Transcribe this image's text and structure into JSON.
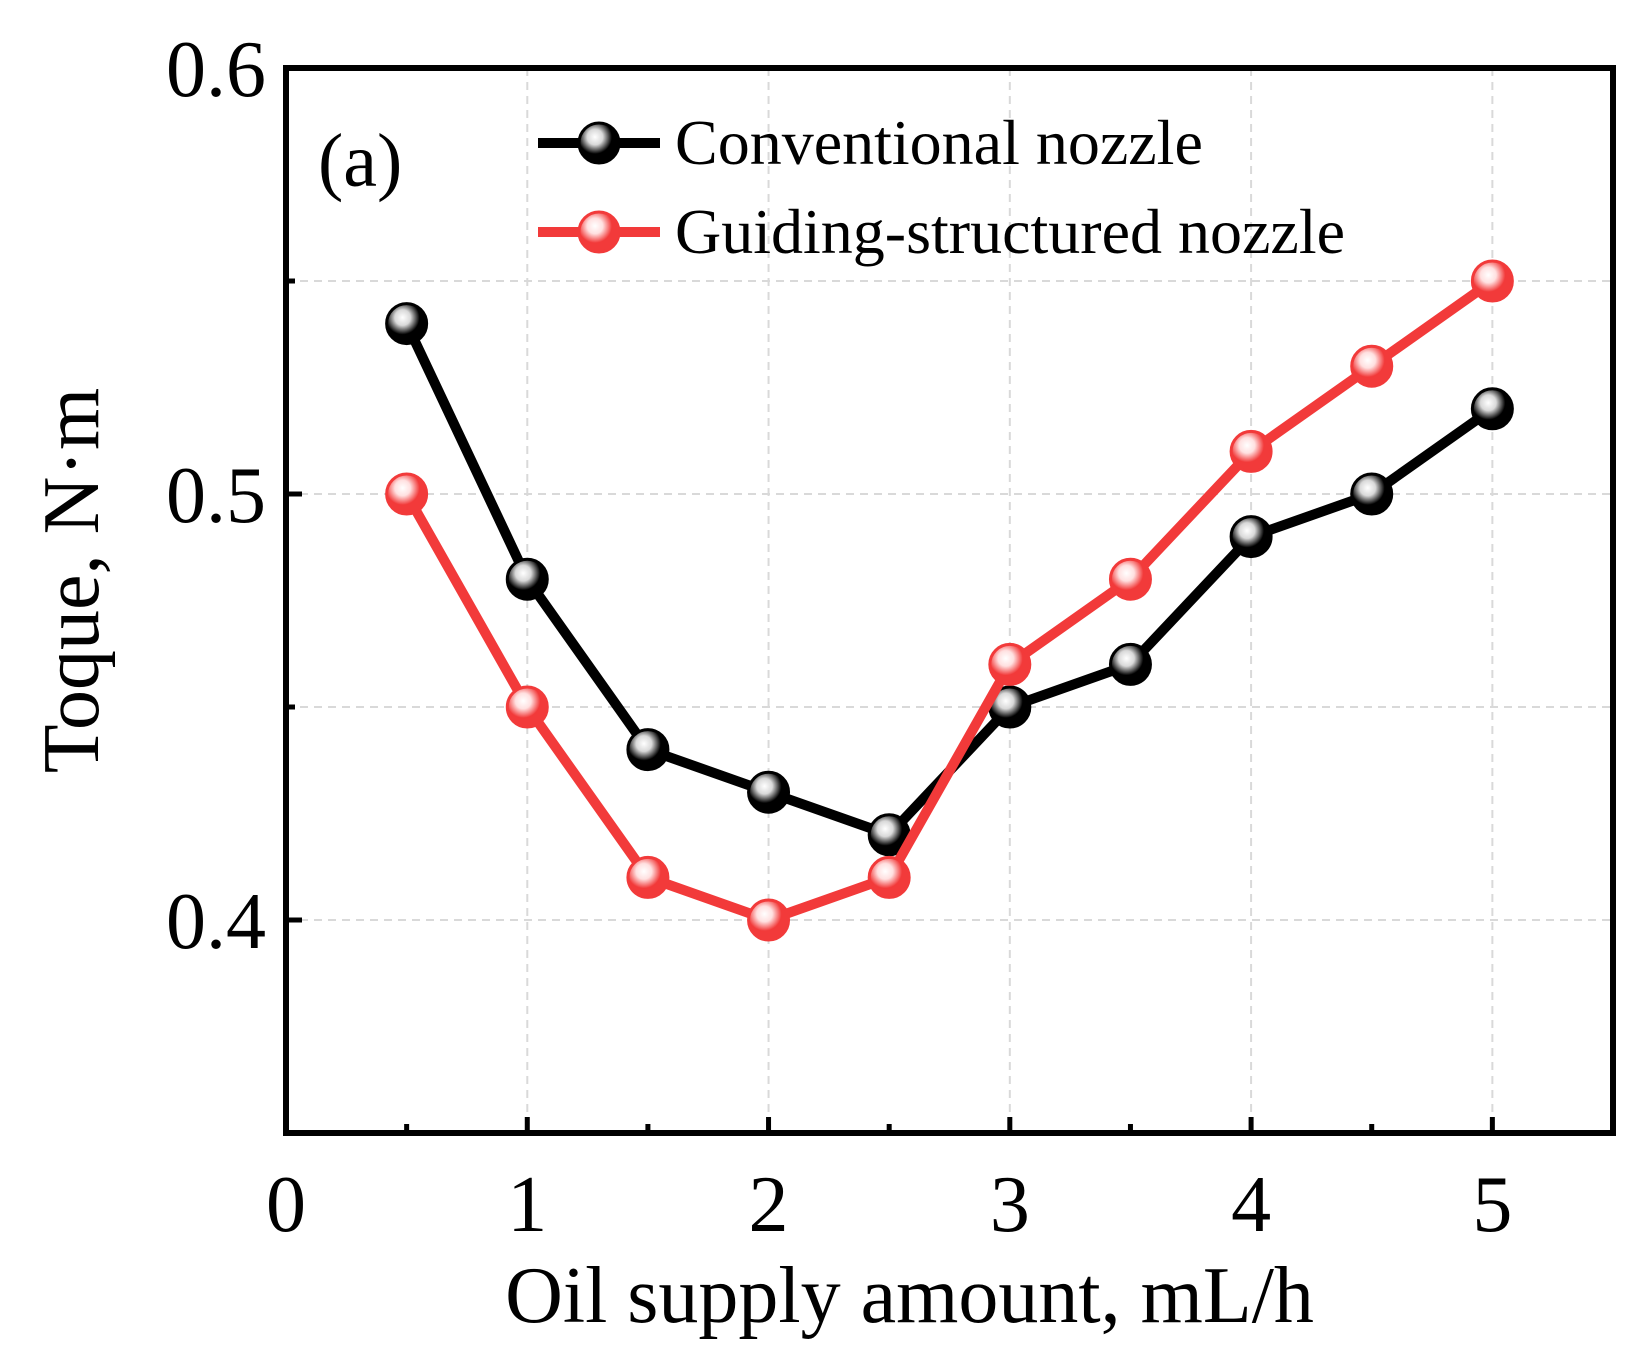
{
  "chart_data": {
    "type": "line",
    "panel_label": "(a)",
    "xlabel": "Oil supply amount, mL/h",
    "ylabel": "Toque, N·m",
    "xlim": [
      0,
      5.5
    ],
    "ylim": [
      0.35,
      0.6
    ],
    "xticks": [
      0,
      1,
      2,
      3,
      4,
      5
    ],
    "xtick_labels": [
      "0",
      "1",
      "2",
      "3",
      "4",
      "5"
    ],
    "xminor": [
      0.5,
      1.5,
      2.5,
      3.5,
      4.5
    ],
    "yticks": [
      0.4,
      0.5,
      0.6
    ],
    "ytick_labels": [
      "0.4",
      "0.5",
      "0.6"
    ],
    "yminor": [
      0.35,
      0.45,
      0.55
    ],
    "grid": true,
    "legend_position": "top-center",
    "x": [
      0.5,
      1.0,
      1.5,
      2.0,
      2.5,
      3.0,
      3.5,
      4.0,
      4.5,
      5.0
    ],
    "series": [
      {
        "name": "Conventional nozzle",
        "color": "#000000",
        "marker_fill": "#000000",
        "marker_highlight": "#d9d9d9",
        "values": [
          0.54,
          0.48,
          0.44,
          0.43,
          0.42,
          0.45,
          0.46,
          0.49,
          0.5,
          0.52
        ]
      },
      {
        "name": "Guiding-structured nozzle",
        "color": "#f23a3a",
        "marker_fill": "#f23a3a",
        "marker_highlight": "#ffe0e0",
        "values": [
          0.5,
          0.45,
          0.41,
          0.4,
          0.41,
          0.46,
          0.48,
          0.51,
          0.53,
          0.55
        ]
      }
    ]
  }
}
